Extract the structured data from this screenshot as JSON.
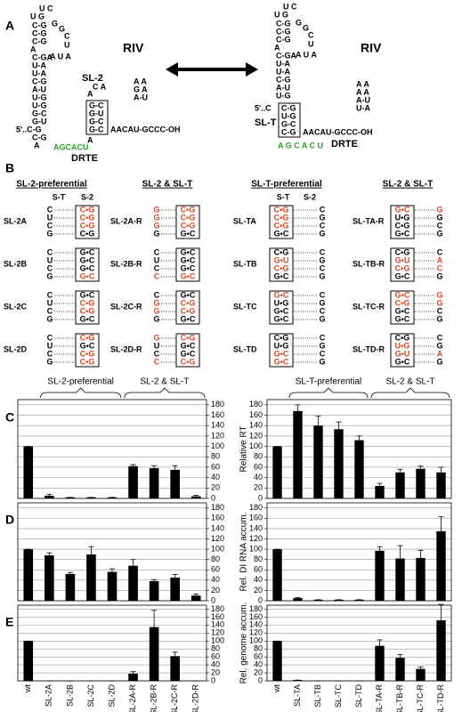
{
  "panel_labels": [
    "A",
    "B",
    "C",
    "D",
    "E"
  ],
  "panel_a": {
    "left": [
      "U C",
      "U     G",
      "C-G",
      "C-G",
      "C-G",
      "A",
      "C-GA",
      "U-A",
      "U-A",
      "C-G",
      "A-U",
      "U-G",
      "U-G",
      "G-C",
      "G-U",
      "5'..C-G",
      "C-G",
      "A",
      "G",
      "G",
      "C",
      "U",
      "A U A",
      "RIV",
      "SL-2",
      "C A",
      "A",
      "A A",
      "G A",
      "A-U",
      "G-C",
      "G-U",
      "G-C",
      "G-C",
      "AACAU-GCCC-OH",
      "A",
      {
        "text": "AGCACU",
        "color": "#2e9e2e"
      },
      "DRTE"
    ],
    "right": [
      "U C",
      "U     G",
      "C-G",
      "C-G",
      "C-G",
      "A",
      "C-GA",
      "U-A",
      "U-A",
      "C-G",
      "A-U",
      "U-G",
      "5'..C",
      "G",
      "G",
      "C",
      "U",
      "A U A",
      "RIV",
      "A A",
      "A A",
      "A-U",
      "U-A",
      "SL-T",
      "C-G",
      "U-G",
      "G-C",
      "C-G",
      "AACAU-GCCC-OH",
      {
        "text": "A G C A C U",
        "color": "#2e9e2e"
      },
      "DRTE"
    ]
  },
  "panel_b": {
    "headings": [
      "SL-2-preferential",
      "SL-2 & SL-T",
      "SL-T-preferential",
      "SL-2 & SL-T"
    ],
    "subheadings": [
      "S-T",
      "S-2",
      "S-T",
      "S-2"
    ],
    "groups": [
      [
        {
          "name": "SL-2A",
          "singles": [
            "C",
            "U",
            "C",
            "G"
          ],
          "pairs": [
            "C•G",
            "C•G",
            "C•G",
            "C•G"
          ],
          "red_singles": [],
          "red_pairs": [
            0,
            1,
            2
          ]
        },
        {
          "name": "SL-2B",
          "singles": [
            "C",
            "U",
            "C",
            "G"
          ],
          "pairs": [
            "G•C",
            "G•C",
            "G•C",
            "G•C"
          ],
          "red_singles": [],
          "red_pairs": [
            3
          ]
        },
        {
          "name": "SL-2C",
          "singles": [
            "C",
            "U",
            "C",
            "G"
          ],
          "pairs": [
            "G•C",
            "C•G",
            "C•G",
            "G•C"
          ],
          "red_singles": [],
          "red_pairs": [
            1,
            2
          ]
        },
        {
          "name": "SL-2D",
          "singles": [
            "C",
            "U",
            "C",
            "G"
          ],
          "pairs": [
            "C•G",
            "G•C",
            "C•G",
            "C•G"
          ],
          "red_singles": [],
          "red_pairs": [
            0,
            2,
            3
          ]
        }
      ],
      [
        {
          "name": "SL-2A-R",
          "singles": [
            "G",
            "G",
            "G",
            "G"
          ],
          "pairs": [
            "C•G",
            "C•G",
            "C•G",
            "G•C"
          ],
          "red_singles": [
            0,
            1,
            2
          ],
          "red_pairs": [
            0,
            1,
            2
          ]
        },
        {
          "name": "SL-2B-R",
          "singles": [
            "C",
            "U",
            "C",
            "C"
          ],
          "pairs": [
            "G•C",
            "G•C",
            "G•C",
            "G•C"
          ],
          "red_singles": [
            3
          ],
          "red_pairs": [
            3
          ]
        },
        {
          "name": "SL-2C-R",
          "singles": [
            "C",
            "G",
            "G",
            "G"
          ],
          "pairs": [
            "G•C",
            "C•G",
            "C•G",
            "G•C"
          ],
          "red_singles": [
            1,
            2
          ],
          "red_pairs": [
            1,
            2
          ]
        },
        {
          "name": "SL-2D-R",
          "singles": [
            "G",
            "U",
            "C",
            "C"
          ],
          "pairs": [
            "C•G",
            "G•C",
            "G•C",
            "C•G"
          ],
          "red_singles": [
            0,
            3
          ],
          "red_pairs": [
            0,
            3
          ]
        }
      ],
      [
        {
          "name": "SL-TA",
          "singles": [
            "C",
            "G",
            "C",
            "G"
          ],
          "pairs": [
            "C•G",
            "C•G",
            "C•G",
            "G•C"
          ],
          "red_singles": [],
          "red_pairs": [
            0,
            1,
            2
          ]
        },
        {
          "name": "SL-TB",
          "singles": [
            "C",
            "G",
            "C",
            "G"
          ],
          "pairs": [
            "C•G",
            "G•U",
            "C•G",
            "G•C"
          ],
          "red_singles": [],
          "red_pairs": [
            1,
            2
          ]
        },
        {
          "name": "SL-TC",
          "singles": [
            "C",
            "G",
            "C",
            "G"
          ],
          "pairs": [
            "G•C",
            "U•G",
            "G•C",
            "G•C"
          ],
          "red_singles": [],
          "red_pairs": [
            0
          ]
        },
        {
          "name": "SL-TD",
          "singles": [
            "C",
            "G",
            "C",
            "G"
          ],
          "pairs": [
            "C•G",
            "U•G",
            "G•C",
            "G•C"
          ],
          "red_singles": [],
          "red_pairs": [
            2,
            3
          ]
        }
      ],
      [
        {
          "name": "SL-TA-R",
          "singles": [
            "G",
            "G",
            "C",
            "G"
          ],
          "pairs": [
            "G•C",
            "U•G",
            "C•G",
            "G•C"
          ],
          "red_singles": [
            0
          ],
          "red_pairs": [
            0
          ]
        },
        {
          "name": "SL-TB-R",
          "singles": [
            "C",
            "A",
            "C",
            "G"
          ],
          "pairs": [
            "C•G",
            "G•U",
            "C•G",
            "G•C"
          ],
          "red_singles": [
            1,
            2
          ],
          "red_pairs": [
            1,
            2
          ]
        },
        {
          "name": "SL-TC-R",
          "singles": [
            "G",
            "G",
            "C",
            "G"
          ],
          "pairs": [
            "G•C",
            "C•G",
            "G•C",
            "G•C"
          ],
          "red_singles": [
            0,
            1
          ],
          "red_pairs": [
            0,
            1
          ]
        },
        {
          "name": "SL-TD-R",
          "singles": [
            "C",
            "G",
            "A",
            "G"
          ],
          "pairs": [
            "C•G",
            "U•G",
            "G•U",
            "G•C"
          ],
          "red_singles": [
            2
          ],
          "red_pairs": [
            1,
            2
          ]
        }
      ]
    ]
  },
  "chart_data": [
    {
      "type": "bar",
      "group_labels": [
        "SL-2-preferential",
        "SL-2 & SL-T"
      ],
      "y_axis_side": "right",
      "color": "#000000",
      "grid": true,
      "values": [
        100,
        5,
        2,
        2,
        2,
        62,
        58,
        55,
        4
      ],
      "errors": [
        0,
        3,
        0,
        0,
        0,
        3,
        5,
        8,
        2
      ],
      "ylim": [
        0,
        190
      ],
      "yticks": [
        0,
        20,
        40,
        60,
        80,
        100,
        120,
        140,
        160,
        180
      ]
    },
    {
      "type": "bar",
      "group_labels": [
        "SL-T-preferential",
        "SL-2 & SL-T"
      ],
      "y_axis_side": "left",
      "ylabel": "Relative RT",
      "color": "#000000",
      "grid": true,
      "values": [
        100,
        168,
        140,
        133,
        112,
        24,
        50,
        57,
        50
      ],
      "errors": [
        0,
        12,
        18,
        14,
        8,
        5,
        6,
        5,
        10
      ],
      "ylim": [
        0,
        190
      ],
      "yticks": [
        0,
        20,
        40,
        60,
        80,
        100,
        120,
        140,
        160,
        180
      ]
    },
    {
      "type": "bar",
      "y_axis_side": "right",
      "color": "#000000",
      "grid": true,
      "values": [
        100,
        88,
        52,
        90,
        56,
        68,
        38,
        45,
        10
      ],
      "errors": [
        0,
        5,
        3,
        15,
        6,
        12,
        3,
        6,
        3
      ],
      "ylim": [
        0,
        190
      ],
      "yticks": [
        0,
        20,
        40,
        60,
        80,
        100,
        120,
        140,
        160,
        180
      ]
    },
    {
      "type": "bar",
      "y_axis_side": "left",
      "ylabel": "Rel. DI RNA accum.",
      "color": "#000000",
      "grid": true,
      "values": [
        100,
        5,
        2,
        2,
        2,
        97,
        82,
        83,
        135
      ],
      "errors": [
        0,
        1,
        0,
        0,
        0,
        8,
        25,
        15,
        28
      ],
      "ylim": [
        0,
        190
      ],
      "yticks": [
        0,
        20,
        40,
        60,
        80,
        100,
        120,
        140,
        160,
        180
      ]
    },
    {
      "type": "bar",
      "y_axis_side": "right",
      "color": "#000000",
      "grid": true,
      "categories": [
        "wt",
        "SL-2A",
        "SL-2B",
        "SL-2C",
        "SL-2D",
        "SL-2A-R",
        "SL-2B-R",
        "SL-2C-R",
        "SL-2D-R"
      ],
      "values": [
        100,
        0,
        0,
        0,
        0,
        18,
        135,
        62,
        0
      ],
      "errors": [
        0,
        0,
        0,
        0,
        0,
        5,
        42,
        10,
        0
      ],
      "ylim": [
        0,
        190
      ],
      "yticks": [
        0,
        20,
        40,
        60,
        80,
        100,
        120,
        140,
        160,
        180
      ]
    },
    {
      "type": "bar",
      "y_axis_side": "left",
      "ylabel": "Rel. genome accum.",
      "color": "#000000",
      "grid": true,
      "categories": [
        "wt",
        "SL-TA",
        "SL-TB",
        "SL-TC",
        "SL-TD",
        "SL-TA-R",
        "SL-TB-R",
        "SL-TC-R",
        "SL-TD-R"
      ],
      "values": [
        100,
        2,
        0,
        0,
        0,
        88,
        58,
        30,
        152
      ],
      "errors": [
        0,
        0,
        0,
        0,
        0,
        15,
        8,
        5,
        40
      ],
      "ylim": [
        0,
        190
      ],
      "yticks": [
        0,
        20,
        40,
        60,
        80,
        100,
        120,
        140,
        160,
        180
      ]
    }
  ]
}
